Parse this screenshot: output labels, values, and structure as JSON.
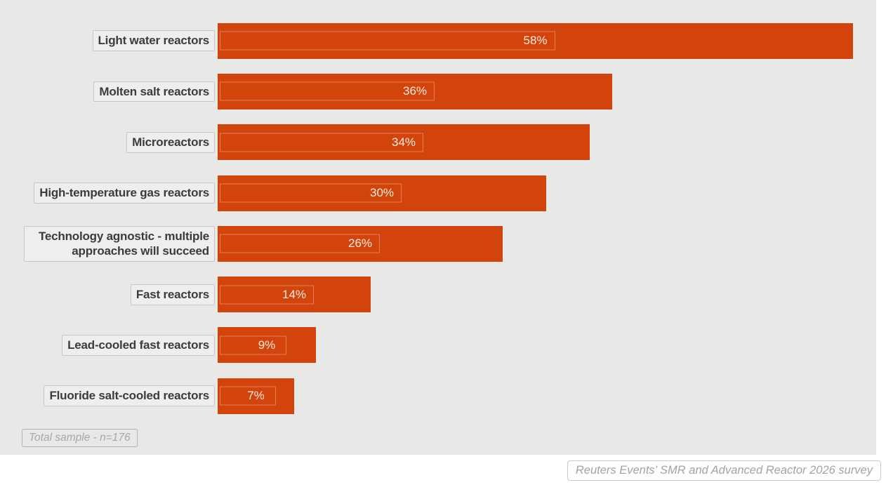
{
  "chart": {
    "footnote": "Total sample - n=176",
    "source": "Reuters Events’ SMR and Advanced Reactor 2026 survey",
    "colors": {
      "bar": "#d3440c",
      "plot_background": "#e8e8e6",
      "value_text": "#f9ede1",
      "category_text": "#3c3c3c"
    }
  },
  "chart_data": {
    "type": "bar",
    "orientation": "horizontal",
    "title": "",
    "xlabel": "",
    "ylabel": "",
    "categories": [
      "Light water reactors",
      "Molten salt reactors",
      "Microreactors",
      "High-temperature gas reactors",
      "Technology agnostic - multiple approaches will succeed",
      "Fast reactors",
      "Lead-cooled fast reactors",
      "Fluoride salt-cooled reactors"
    ],
    "values": [
      58,
      36,
      34,
      30,
      26,
      14,
      9,
      7
    ],
    "value_suffix": "%",
    "xlim": [
      0,
      58
    ],
    "grid": false,
    "legend": false,
    "data_labels": "centered-inside-bar",
    "footnote": "Total sample - n=176",
    "source": "Reuters Events’ SMR and Advanced Reactor 2026 survey"
  }
}
